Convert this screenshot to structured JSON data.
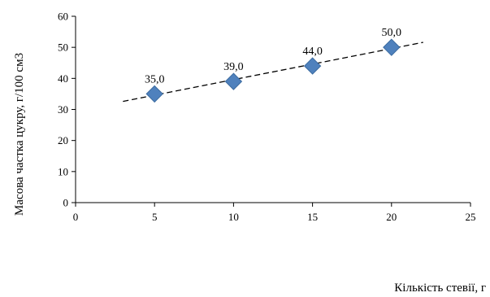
{
  "chart_data": {
    "type": "scatter",
    "title": "",
    "xlabel": "Кількість стевії, г",
    "ylabel": "Масова частка цукру, г/100 см3",
    "xlim": [
      0,
      25
    ],
    "ylim": [
      0,
      60
    ],
    "x_ticks": [
      0,
      5,
      10,
      15,
      20,
      25
    ],
    "y_ticks": [
      0,
      10,
      20,
      30,
      40,
      50,
      60
    ],
    "grid": false,
    "legend": "none",
    "marker_color": "#4f81bd",
    "marker_shape": "diamond",
    "series": [
      {
        "points": [
          {
            "x": 5,
            "y": 35.0,
            "label": "35,0"
          },
          {
            "x": 10,
            "y": 39.0,
            "label": "39,0"
          },
          {
            "x": 15,
            "y": 44.0,
            "label": "44,0"
          },
          {
            "x": 20,
            "y": 50.0,
            "label": "50,0"
          }
        ]
      }
    ],
    "trendline": {
      "type": "linear",
      "style": "dashed",
      "from": {
        "x": 3,
        "y": 32.6
      },
      "to": {
        "x": 22,
        "y": 51.6
      }
    }
  }
}
